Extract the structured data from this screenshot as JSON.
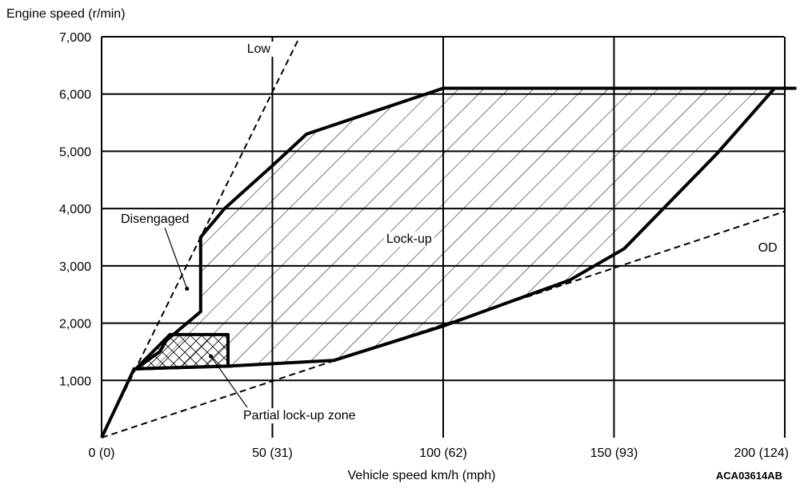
{
  "chart_data": {
    "type": "area",
    "ylabel": "Engine speed (r/min)",
    "xlabel": "Vehicle speed  km/h (mph)",
    "figure_code": "ACA03614AB",
    "xlim": [
      0,
      200
    ],
    "ylim": [
      0,
      7000
    ],
    "grid": true,
    "x_ticks": [
      {
        "value": 0,
        "label": "0 (0)"
      },
      {
        "value": 50,
        "label": "50 (31)"
      },
      {
        "value": 100,
        "label": "100 (62)"
      },
      {
        "value": 150,
        "label": "150 (93)"
      },
      {
        "value": 200,
        "label": "200 (124)"
      }
    ],
    "y_ticks": [
      {
        "value": 1000,
        "label": "1,000"
      },
      {
        "value": 2000,
        "label": "2,000"
      },
      {
        "value": 3000,
        "label": "3,000"
      },
      {
        "value": 4000,
        "label": "4,000"
      },
      {
        "value": 5000,
        "label": "5,000"
      },
      {
        "value": 6000,
        "label": "6,000"
      },
      {
        "value": 7000,
        "label": "7,000"
      }
    ],
    "lines": [
      {
        "name": "Low",
        "style": "dashed",
        "points": [
          [
            0,
            0
          ],
          [
            58,
            7000
          ]
        ]
      },
      {
        "name": "OD",
        "style": "dashed",
        "points": [
          [
            0,
            0
          ],
          [
            200,
            3950
          ]
        ]
      }
    ],
    "regions": [
      {
        "name": "Lock-up",
        "fill": "hatched",
        "points": [
          [
            9.5,
            1200
          ],
          [
            10,
            1200
          ],
          [
            17,
            1500
          ],
          [
            19,
            1700
          ],
          [
            21,
            1800
          ],
          [
            24,
            1950
          ],
          [
            29,
            2200
          ],
          [
            29,
            3500
          ],
          [
            36,
            4000
          ],
          [
            50,
            4750
          ],
          [
            60,
            5300
          ],
          [
            80,
            5700
          ],
          [
            100,
            6100
          ],
          [
            200,
            6100
          ],
          [
            203,
            6100
          ],
          [
            197,
            6100
          ],
          [
            180,
            4950
          ],
          [
            153,
            3300
          ],
          [
            137,
            2750
          ],
          [
            100,
            1950
          ],
          [
            68,
            1350
          ],
          [
            37,
            1250
          ],
          [
            38,
            1250
          ],
          [
            20,
            1220
          ]
        ]
      },
      {
        "name": "Partial lock-up zone",
        "fill": "cross-hatched",
        "points": [
          [
            20,
            1800
          ],
          [
            37,
            1800
          ],
          [
            37,
            1250
          ],
          [
            20,
            1220
          ],
          [
            10,
            1200
          ]
        ]
      }
    ],
    "boundary_line": [
      [
        0,
        0
      ],
      [
        9.5,
        1200
      ]
    ],
    "annotations": [
      {
        "text": "Low",
        "at": [
          46,
          6720
        ]
      },
      {
        "text": "OD",
        "at": [
          195,
          3250
        ]
      },
      {
        "text": "Lock-up",
        "at": [
          90,
          3400
        ]
      },
      {
        "text": "Disengaged",
        "at": [
          16,
          3750
        ],
        "pointer": [
          25,
          2600
        ]
      },
      {
        "text": "Partial lock-up zone",
        "at": [
          42,
          320
        ],
        "pointer": [
          32,
          1420
        ]
      }
    ]
  }
}
